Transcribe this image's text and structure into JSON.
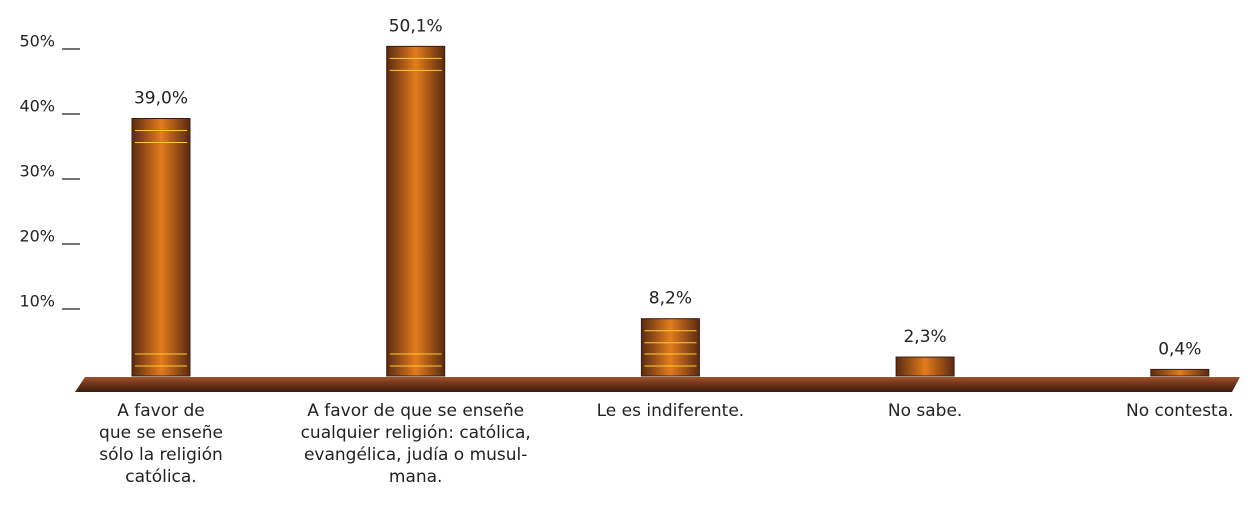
{
  "chart_data": {
    "type": "bar",
    "categories": [
      "A favor de\nque se enseñe\nsólo la religión\ncatólica.",
      "A favor de que se enseñe\ncualquier religión: católica,\nevangélica, judía o musul-\nmana.",
      "Le es indiferente.",
      "No sabe.",
      "No contesta."
    ],
    "values": [
      39.0,
      50.1,
      8.2,
      2.3,
      0.4
    ],
    "value_labels": [
      "39,0%",
      "50,1%",
      "8,2%",
      "2,3%",
      "0,4%"
    ],
    "color": "#c8651a",
    "ylim": [
      0,
      54
    ],
    "yticks": [
      {
        "value": 10,
        "label": "10%"
      },
      {
        "value": 20,
        "label": "20%"
      },
      {
        "value": 30,
        "label": "30%"
      },
      {
        "value": 40,
        "label": "40%"
      },
      {
        "value": 50,
        "label": "50%"
      }
    ]
  }
}
